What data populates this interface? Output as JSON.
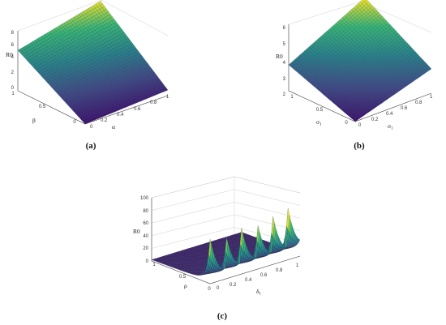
{
  "chart_data": [
    {
      "type": "surface",
      "panel_label": "(a)",
      "z_label": "R0",
      "z_label_sub": "0",
      "x_label": "β",
      "y_label": "α",
      "y_label_sub": "0",
      "x_ticks": [
        "0",
        "0.5",
        "1"
      ],
      "y_ticks": [
        "0",
        "0.2",
        "0.4",
        "0.6",
        "0.8",
        "1"
      ],
      "z_ticks": [
        "0",
        "2",
        "4",
        "6",
        "8"
      ],
      "zlim": [
        0,
        9
      ],
      "corner_values": {
        "beta0_alpha0": 0,
        "beta0_alpha1": 0.8,
        "beta1_alpha0": 5.8,
        "beta1_alpha1": 8.8
      },
      "colormap": [
        "#3b0f70",
        "#3e4a89",
        "#26828e",
        "#35b779",
        "#fde725"
      ]
    },
    {
      "type": "surface",
      "panel_label": "(b)",
      "z_label": "R0",
      "z_label_sub": "0",
      "x_label": "σ",
      "x_label_sub": "1",
      "y_label": "σ",
      "y_label_sub": "1",
      "x_ticks": [
        "0",
        "0.5",
        "1"
      ],
      "y_ticks": [
        "0",
        "0.2",
        "0.4",
        "0.6",
        "0.8",
        "1"
      ],
      "z_ticks": [
        "2",
        "3",
        "4",
        "5",
        "6"
      ],
      "zlim": [
        2,
        6
      ],
      "corner_values": {
        "x0_y0": 2.0,
        "x0_y1": 3.5,
        "x1_y0": 3.6,
        "x1_y1": 6.0
      },
      "colormap": [
        "#3b0f70",
        "#3e4a89",
        "#26828e",
        "#35b779",
        "#fde725"
      ]
    },
    {
      "type": "surface",
      "panel_label": "(c)",
      "z_label": "R0",
      "z_label_sub": "0",
      "x_label": "ρ",
      "y_label": "δ",
      "y_label_sub": "1",
      "x_ticks": [
        "0",
        "0.5",
        "1"
      ],
      "y_ticks": [
        "0",
        "0.2",
        "0.4",
        "0.6",
        "0.8",
        "1"
      ],
      "z_ticks": [
        "0",
        "20",
        "40",
        "60",
        "80",
        "100"
      ],
      "zlim": [
        0,
        100
      ],
      "peak_values": [
        55,
        55,
        58,
        60,
        62,
        62
      ],
      "colormap": [
        "#3b0f70",
        "#3e4a89",
        "#26828e",
        "#35b779",
        "#fde725"
      ]
    }
  ]
}
